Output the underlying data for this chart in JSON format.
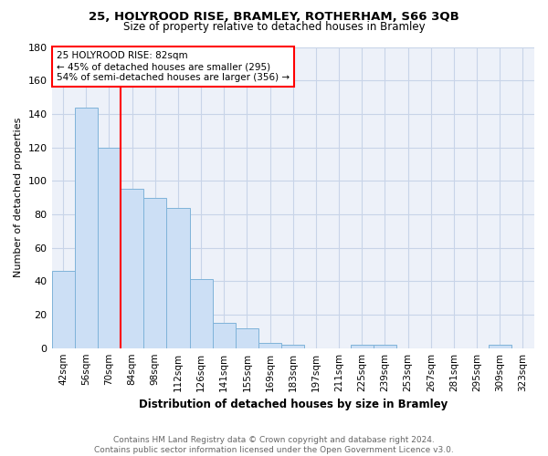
{
  "title_line1": "25, HOLYROOD RISE, BRAMLEY, ROTHERHAM, S66 3QB",
  "title_line2": "Size of property relative to detached houses in Bramley",
  "xlabel": "Distribution of detached houses by size in Bramley",
  "ylabel": "Number of detached properties",
  "footer": "Contains HM Land Registry data © Crown copyright and database right 2024.\nContains public sector information licensed under the Open Government Licence v3.0.",
  "categories": [
    "42sqm",
    "56sqm",
    "70sqm",
    "84sqm",
    "98sqm",
    "112sqm",
    "126sqm",
    "141sqm",
    "155sqm",
    "169sqm",
    "183sqm",
    "197sqm",
    "211sqm",
    "225sqm",
    "239sqm",
    "253sqm",
    "267sqm",
    "281sqm",
    "295sqm",
    "309sqm",
    "323sqm"
  ],
  "values": [
    46,
    144,
    120,
    95,
    90,
    84,
    41,
    15,
    12,
    3,
    2,
    0,
    0,
    2,
    2,
    0,
    0,
    0,
    0,
    2,
    0
  ],
  "bar_color": "#ccdff5",
  "bar_edge_color": "#7fb3d9",
  "vline_color": "red",
  "annotation_text": "25 HOLYROOD RISE: 82sqm\n← 45% of detached houses are smaller (295)\n54% of semi-detached houses are larger (356) →",
  "annotation_box_color": "white",
  "annotation_box_edge": "red",
  "ylim": [
    0,
    180
  ],
  "yticks": [
    0,
    20,
    40,
    60,
    80,
    100,
    120,
    140,
    160,
    180
  ],
  "grid_color": "#c8d4e8",
  "bg_color": "#edf1f9"
}
